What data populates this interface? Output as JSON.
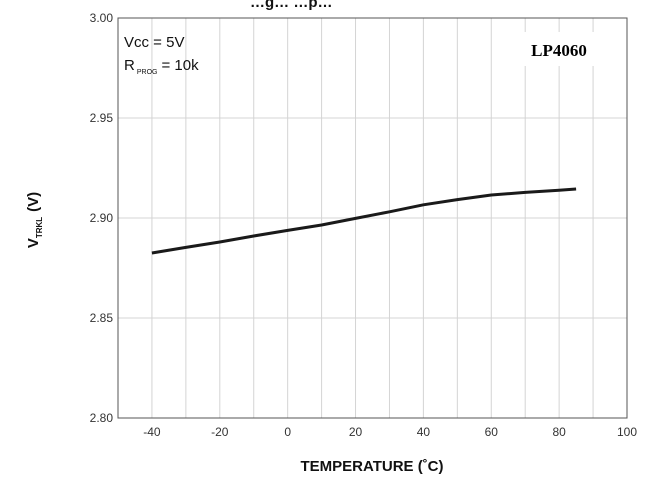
{
  "chart_data": {
    "type": "line",
    "title": "",
    "title_partial_visible": "…g…   …p…",
    "xlabel": "TEMPERATURE (˚C)",
    "ylabel": {
      "main": "V",
      "subscript": "TRKL",
      "unit": "(V)"
    },
    "xlim": [
      -50,
      100
    ],
    "ylim": [
      2.8,
      3.0
    ],
    "x_ticks": [
      -40,
      -20,
      0,
      20,
      40,
      60,
      80,
      100
    ],
    "x_tick_labels": [
      "-40",
      "-20",
      "0",
      "20",
      "40",
      "60",
      "80",
      "100"
    ],
    "y_ticks": [
      2.8,
      2.85,
      2.9,
      2.95,
      3.0
    ],
    "y_tick_labels": [
      "2.80",
      "2.85",
      "2.90",
      "2.95",
      "3.00"
    ],
    "grid": true,
    "legend": "none",
    "annotations": {
      "line1": "Vcc = 5V",
      "line2_main": "R",
      "line2_sub": "PROG",
      "line2_rest": "= 10k",
      "model": "LP4060"
    },
    "series": [
      {
        "x": [
          -40,
          -30,
          -20,
          -10,
          0,
          10,
          20,
          30,
          40,
          50,
          60,
          70,
          80,
          85
        ],
        "y": [
          2.8825,
          2.8853,
          2.888,
          2.891,
          2.8938,
          2.8965,
          2.8998,
          2.9031,
          2.9066,
          2.9092,
          2.9115,
          2.9128,
          2.9139,
          2.9145
        ],
        "color": "#1a1a1a"
      }
    ]
  }
}
